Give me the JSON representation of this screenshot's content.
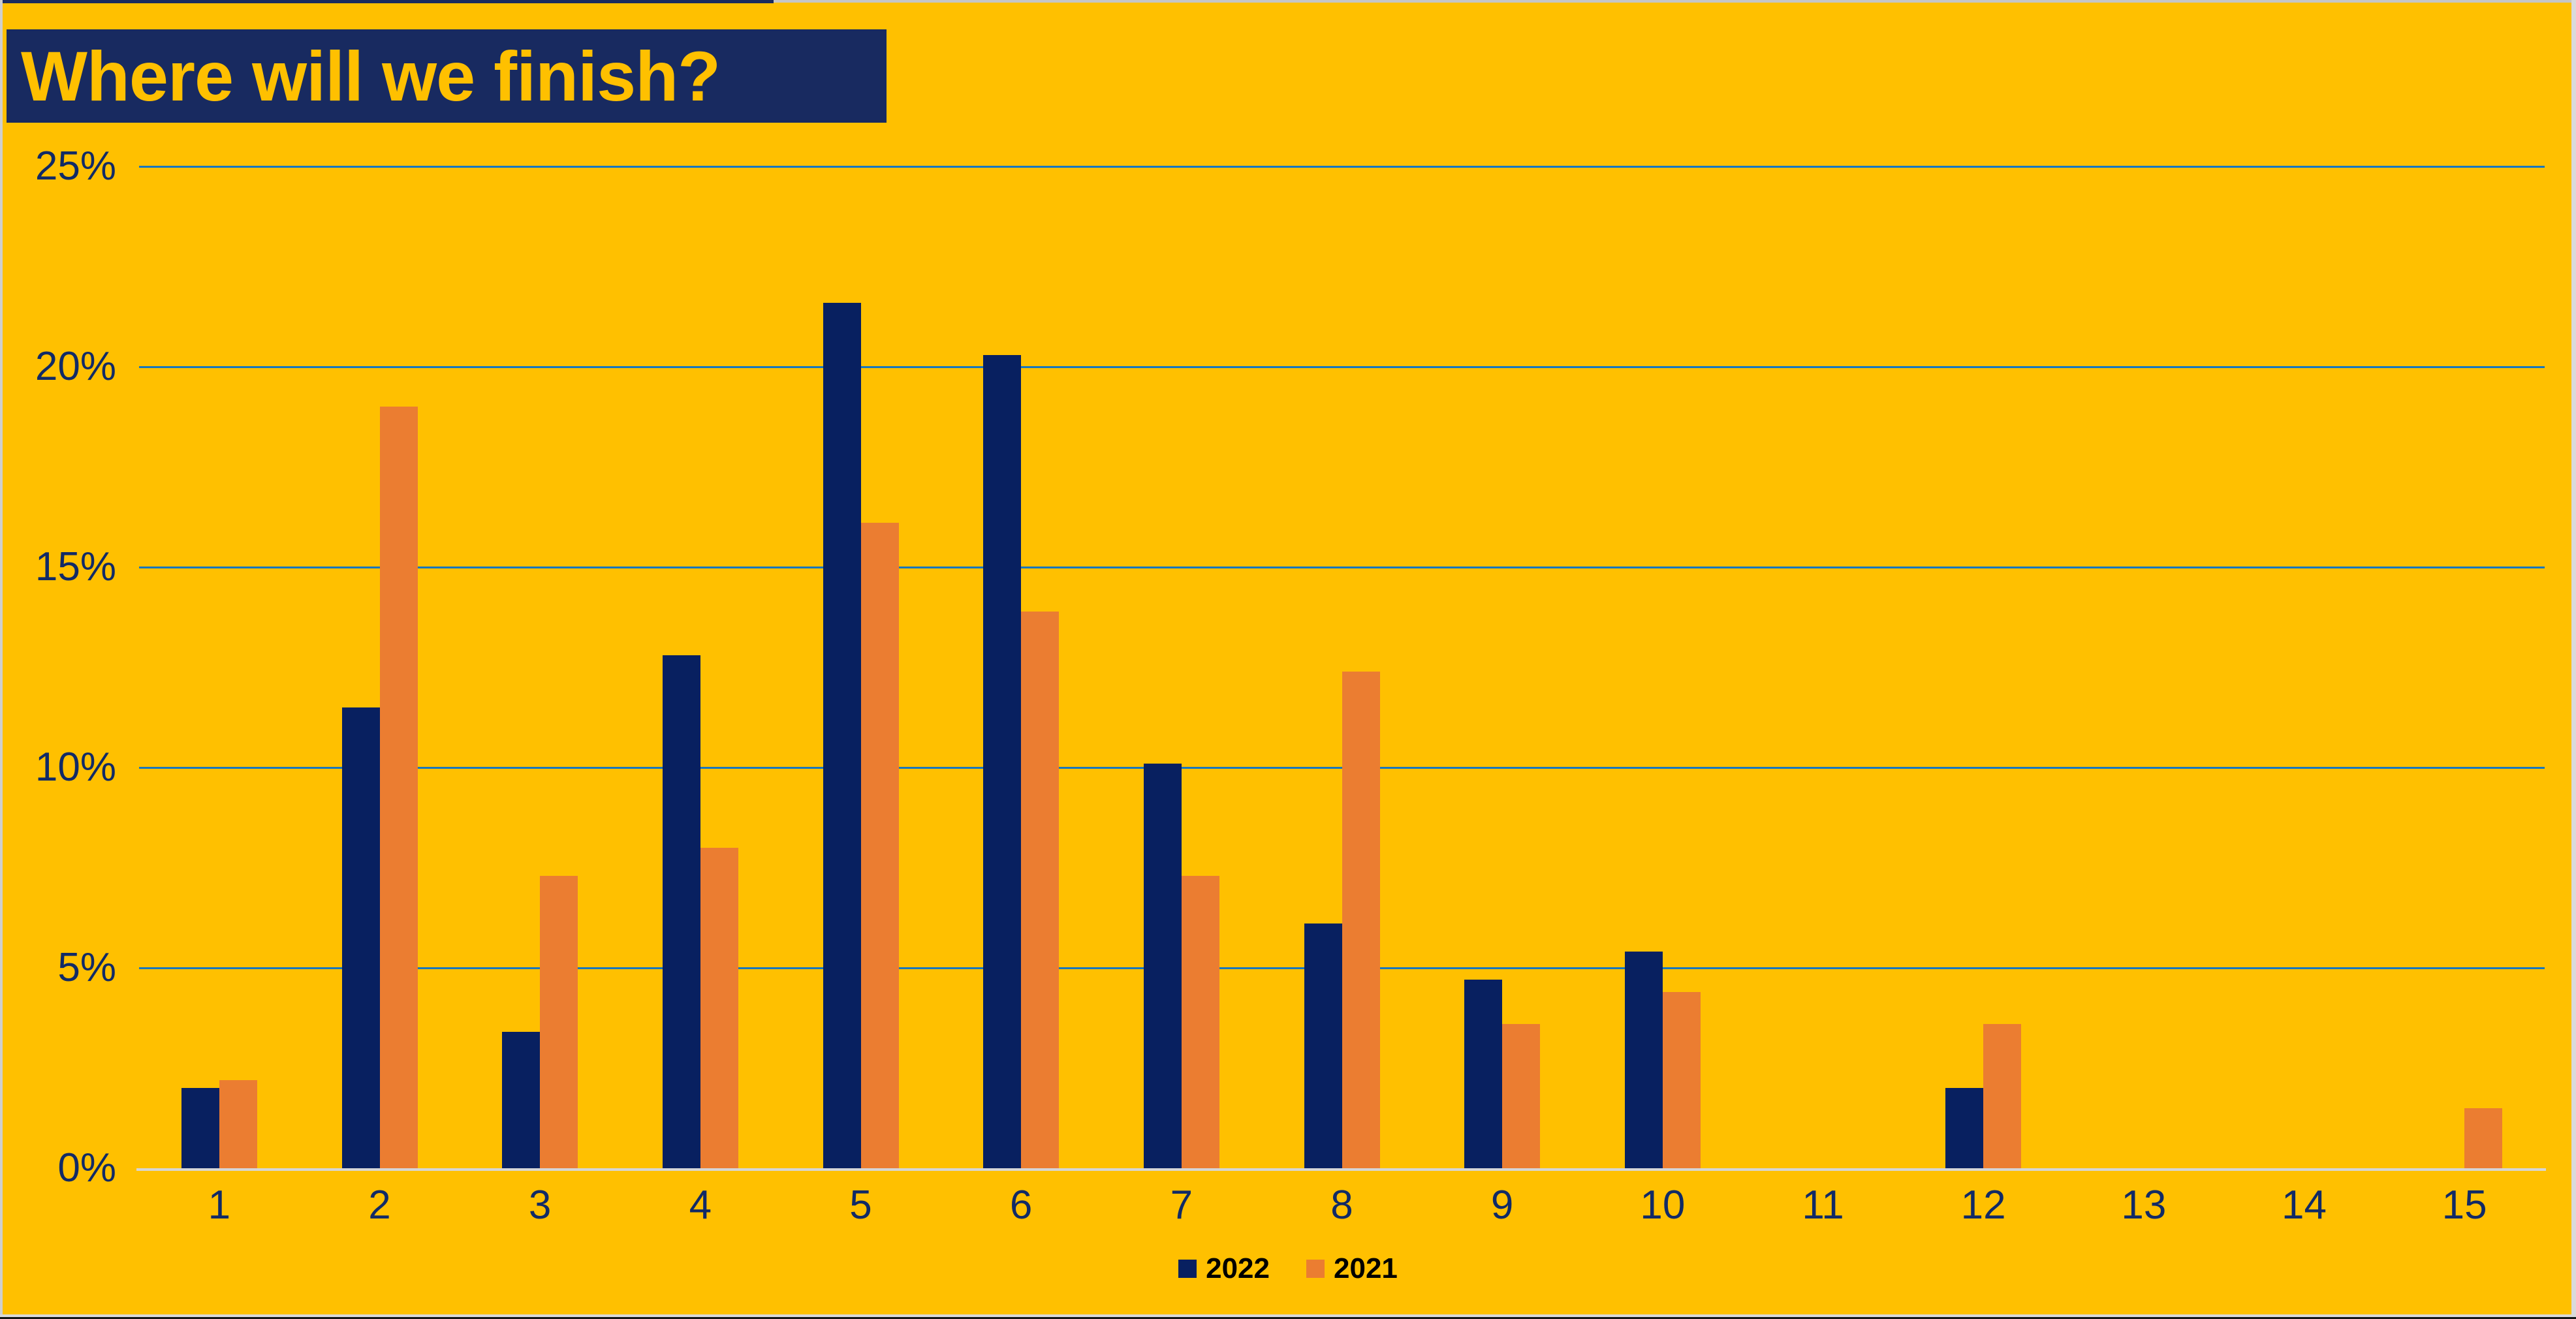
{
  "title": {
    "text": "Where will we finish?"
  },
  "chart_data": {
    "type": "bar",
    "title": "Where will we finish?",
    "categories": [
      "1",
      "2",
      "3",
      "4",
      "5",
      "6",
      "7",
      "8",
      "9",
      "10",
      "11",
      "12",
      "13",
      "14",
      "15"
    ],
    "series": [
      {
        "name": "2022",
        "color": "#082060",
        "values": [
          2.0,
          11.5,
          3.4,
          12.8,
          21.6,
          20.3,
          10.1,
          6.1,
          4.7,
          5.4,
          0,
          2.0,
          0,
          0,
          0
        ]
      },
      {
        "name": "2021",
        "color": "#EB7D31",
        "values": [
          2.2,
          19.0,
          7.3,
          8.0,
          16.1,
          13.9,
          7.3,
          12.4,
          3.6,
          4.4,
          0,
          3.6,
          0,
          0,
          1.5
        ]
      }
    ],
    "xlabel": "",
    "ylabel": "",
    "ylim": [
      0,
      25
    ],
    "yticks": [
      {
        "value": 0,
        "label": "0%"
      },
      {
        "value": 5,
        "label": "5%"
      },
      {
        "value": 10,
        "label": "10%"
      },
      {
        "value": 15,
        "label": "15%"
      },
      {
        "value": 20,
        "label": "20%"
      },
      {
        "value": 25,
        "label": "25%"
      }
    ],
    "grid": true,
    "legend_position": "bottom-center"
  },
  "colors": {
    "background": "#FFC000",
    "title_bg": "#182A60",
    "title_text": "#FFC000",
    "axis_label": "#112A66",
    "gridline": "#1877BE",
    "baseline": "#D6D6D6",
    "legend_text": "#000000",
    "frame_top": "#C6C6C6",
    "frame_top_navy": "#1B2B5E",
    "frame_left": "#CFCFCF",
    "frame_right": "#DADADA",
    "frame_bottom": "#DADADA",
    "frame_bottom_dark": "#151515"
  }
}
